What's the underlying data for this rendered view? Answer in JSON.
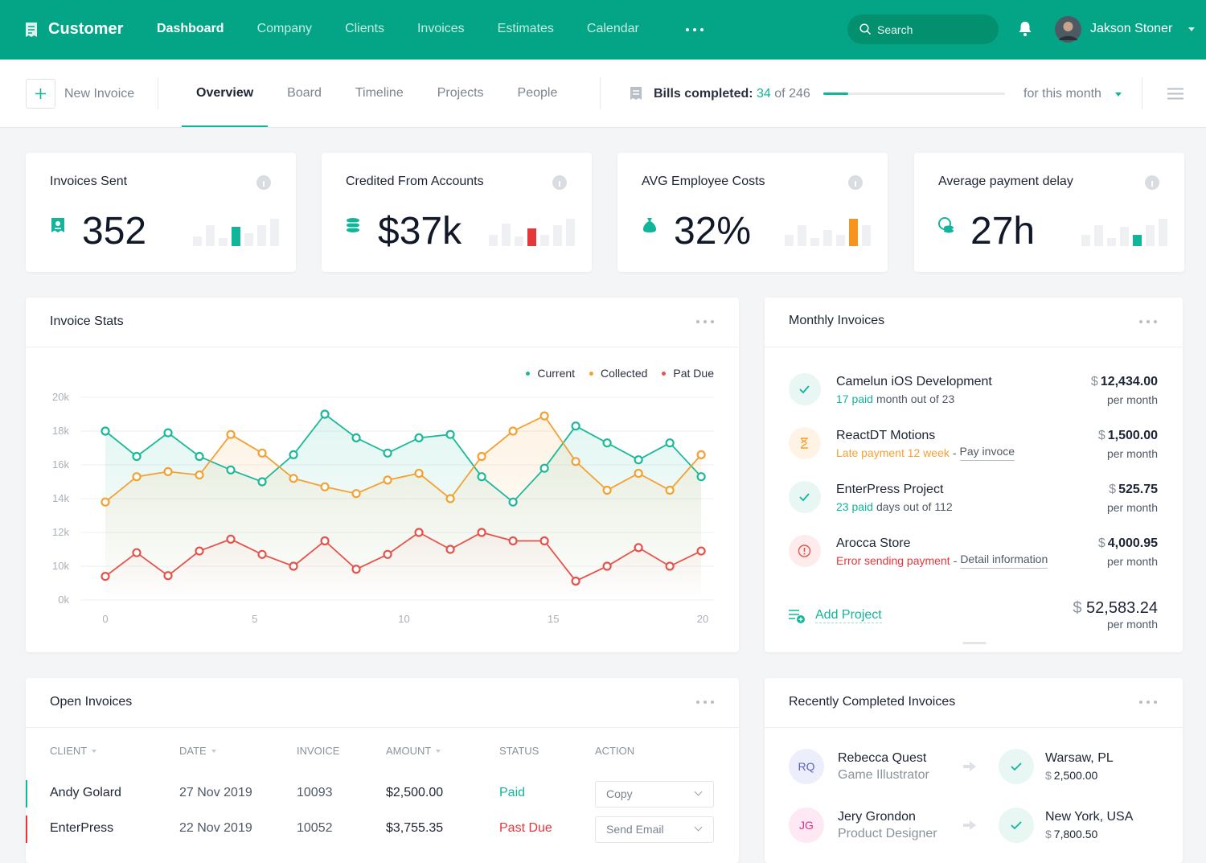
{
  "nav": {
    "brand": "Customer",
    "items": [
      "Dashboard",
      "Company",
      "Clients",
      "Invoices",
      "Estimates",
      "Calendar"
    ],
    "active": 0,
    "search": "Search",
    "user": "Jakson Stoner"
  },
  "subnav": {
    "new": "New Invoice",
    "tabs": [
      "Overview",
      "Board",
      "Timeline",
      "Projects",
      "People"
    ],
    "active": 0,
    "bills": {
      "label": "Bills completed:",
      "done": 34,
      "of": "of",
      "total": 246
    },
    "period": "for this month"
  },
  "stats": [
    {
      "title": "Invoices Sent",
      "value": "352",
      "bars": [
        12,
        26,
        10,
        24,
        16,
        26,
        34
      ],
      "highlight": 3,
      "color": "#11b59a"
    },
    {
      "title": "Credited From Accounts",
      "value": "$37k",
      "bars": [
        14,
        28,
        12,
        22,
        14,
        26,
        34
      ],
      "highlight": 3,
      "color": "#e5373a"
    },
    {
      "title": "AVG Employee Costs",
      "value": "32%",
      "bars": [
        14,
        26,
        10,
        20,
        14,
        34,
        26
      ],
      "highlight": 5,
      "color": "#f7931e"
    },
    {
      "title": "Average payment delay",
      "value": "27h",
      "bars": [
        14,
        26,
        10,
        24,
        14,
        26,
        34
      ],
      "highlight": 4,
      "color": "#11b59a"
    }
  ],
  "chart_data": {
    "type": "line",
    "title": "Invoice Stats",
    "x": [
      0,
      1.05,
      2.1,
      3.15,
      4.2,
      5.25,
      6.3,
      7.35,
      8.4,
      9.45,
      10.5,
      11.55,
      12.6,
      13.65,
      14.7,
      15.75,
      16.8,
      17.85,
      18.9,
      19.95
    ],
    "series": [
      {
        "name": "Current",
        "color": "#1bb89a",
        "values": [
          18.0,
          16.5,
          17.9,
          16.5,
          15.7,
          15.0,
          16.6,
          19.0,
          17.6,
          16.7,
          17.6,
          17.8,
          15.3,
          13.8,
          15.8,
          18.3,
          17.3,
          16.3,
          17.3,
          15.3
        ]
      },
      {
        "name": "Collected",
        "color": "#f5a031",
        "values": [
          13.8,
          15.3,
          15.6,
          15.4,
          17.8,
          16.7,
          15.2,
          14.7,
          14.3,
          15.1,
          15.5,
          14.0,
          16.5,
          18.0,
          18.9,
          16.2,
          14.5,
          15.5,
          14.5,
          16.6
        ]
      },
      {
        "name": "Pat Due",
        "color": "#e5534b",
        "values": [
          7.0,
          10.8,
          7.2,
          10.9,
          11.6,
          10.7,
          10.0,
          11.5,
          9.1,
          10.7,
          12.0,
          11.0,
          12.0,
          11.5,
          11.5,
          5.6,
          10.0,
          11.1,
          10.0,
          10.9
        ]
      }
    ],
    "xlim": [
      0,
      20
    ],
    "xticks": [
      0,
      5,
      10,
      15,
      20
    ],
    "ylim": [
      0,
      20
    ],
    "yticks": [
      {
        "value": 20,
        "label": "20k"
      },
      {
        "value": 18,
        "label": "18k"
      },
      {
        "value": 16,
        "label": "16k"
      },
      {
        "value": 14,
        "label": "14k"
      },
      {
        "value": 12,
        "label": "12k"
      },
      {
        "value": 10,
        "label": "10k"
      },
      {
        "value": 0,
        "label": "0k"
      }
    ],
    "grid": true,
    "legend": "top-right"
  },
  "monthly": {
    "title": "Monthly Invoices",
    "currency": "$",
    "per": "per month",
    "items": [
      {
        "name": "Camelun iOS Development",
        "status": "ok",
        "amount": "12,434.00",
        "sub": [
          {
            "text": "17 paid",
            "tone": "teal"
          },
          {
            "text": "month out of 23"
          }
        ]
      },
      {
        "name": "ReactDT Motions",
        "status": "late",
        "amount": "1,500.00",
        "sub": [
          {
            "text": "Late payment 12 week",
            "tone": "orange"
          },
          {
            "text": "-"
          },
          {
            "text": "Pay invoce",
            "tone": "link"
          }
        ]
      },
      {
        "name": "EnterPress Project",
        "status": "ok",
        "amount": "525.75",
        "sub": [
          {
            "text": "23 paid",
            "tone": "teal"
          },
          {
            "text": "days out of 112"
          }
        ]
      },
      {
        "name": "Arocca Store",
        "status": "error",
        "amount": "4,000.95",
        "sub": [
          {
            "text": "Error sending payment",
            "tone": "red"
          },
          {
            "text": "-"
          },
          {
            "text": "Detail information",
            "tone": "link"
          }
        ]
      }
    ],
    "add": "Add Project",
    "total": "52,583.24"
  },
  "open_invoices": {
    "title": "Open Invoices",
    "columns": [
      "CLIENT",
      "DATE",
      "INVOICE",
      "AMOUNT",
      "STATUS",
      "ACTION"
    ],
    "sortable": [
      true,
      true,
      false,
      true,
      false,
      false
    ],
    "rows": [
      {
        "cells": [
          "Andy Golard",
          "27 Nov 2019",
          "10093",
          "$2,500.00",
          "Paid",
          "Copy"
        ],
        "color": "#11b59a"
      },
      {
        "cells": [
          "EnterPress",
          "22 Nov 2019",
          "10052",
          "$3,755.35",
          "Past Due",
          "Send Email"
        ],
        "color": "#e5373a"
      }
    ]
  },
  "recent": {
    "title": "Recently Completed Invoices",
    "currency": "$",
    "items": [
      {
        "initials": "RQ",
        "name": "Rebecca Quest",
        "role": "Game Illustrator",
        "city": "Warsaw, PL",
        "amount": "2,500.00",
        "bg": "#eceefb",
        "fg": "#5a63c8"
      },
      {
        "initials": "JG",
        "name": "Jery Grondon",
        "role": "Product Designer",
        "city": "New York, USA",
        "amount": "7,800.50",
        "bg": "#fde8f3",
        "fg": "#d6338a"
      }
    ]
  }
}
